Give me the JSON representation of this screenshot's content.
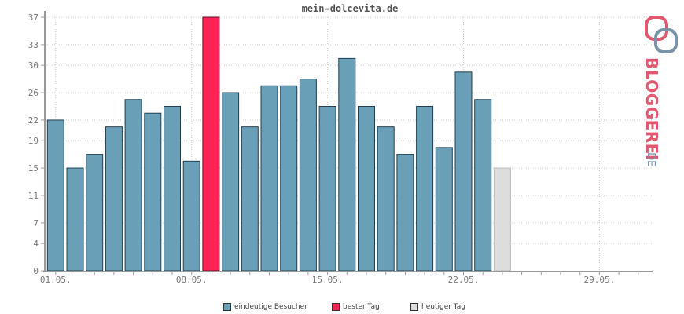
{
  "chart_data": {
    "type": "bar",
    "title": "mein-dolcevita.de",
    "y_ticks": [
      0,
      4,
      7,
      11,
      15,
      19,
      22,
      26,
      30,
      33,
      37
    ],
    "ylim": [
      0,
      37
    ],
    "x_tick_labels": [
      "01.05.",
      "08.05.",
      "15.05.",
      "22.05.",
      "29.05."
    ],
    "x_tick_days": [
      1,
      8,
      15,
      22,
      29
    ],
    "days": [
      1,
      2,
      3,
      4,
      5,
      6,
      7,
      8,
      9,
      10,
      11,
      12,
      13,
      14,
      15,
      16,
      17,
      18,
      19,
      20,
      21,
      22,
      23,
      24,
      25,
      26,
      27,
      28,
      29,
      30,
      31
    ],
    "series": [
      {
        "name": "eindeutige Besucher",
        "values": [
          22,
          15,
          17,
          21,
          25,
          23,
          24,
          16,
          37,
          26,
          21,
          27,
          27,
          28,
          24,
          31,
          24,
          21,
          17,
          24,
          18,
          29,
          25,
          15,
          null,
          null,
          null,
          null,
          null,
          null,
          null
        ]
      }
    ],
    "best_day": 9,
    "today": 24,
    "grid": true
  },
  "legend": {
    "unique_visitors": "eindeutige Besucher",
    "best_day": "bester Tag",
    "today": "heutiger Tag"
  },
  "colors": {
    "bar": "#6a9fb8",
    "best": "#ff2255",
    "today": "#dddddd",
    "axis": "#999999",
    "grid": "#cccccc",
    "brand_red": "#e0596e",
    "brand_blue": "#7a93a8"
  },
  "brand": {
    "name": "BLOGGEREI",
    "tld": ".DE"
  }
}
